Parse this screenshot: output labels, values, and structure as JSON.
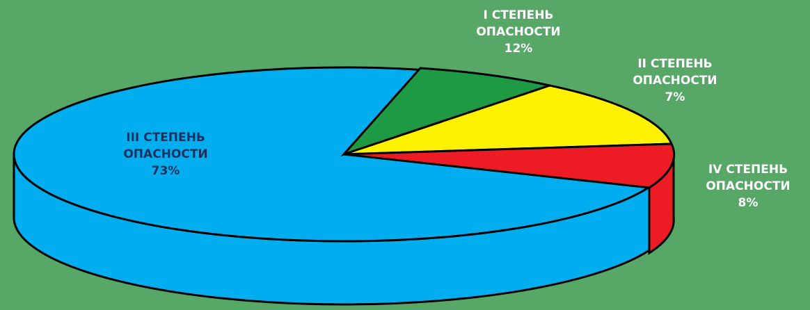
{
  "chart_data": {
    "type": "pie",
    "style": "3d",
    "title": "",
    "slices": [
      {
        "line1": "I СТЕПЕНЬ",
        "line2": "ОПАСНОСТИ",
        "percent_label": "12%",
        "value": 12,
        "color": "#1e9a45"
      },
      {
        "line1": "II СТЕПЕНЬ",
        "line2": "ОПАСНОСТИ",
        "percent_label": "7%",
        "value": 7,
        "color": "#fff200"
      },
      {
        "line1": "IV СТЕПЕНЬ",
        "line2": "ОПАСНОСТИ",
        "percent_label": "8%",
        "value": 8,
        "color": "#ed1c24"
      },
      {
        "line1": "III СТЕПЕНЬ",
        "line2": "ОПАСНОСТИ",
        "percent_label": "73%",
        "value": 73,
        "color": "#00aeef"
      }
    ]
  }
}
